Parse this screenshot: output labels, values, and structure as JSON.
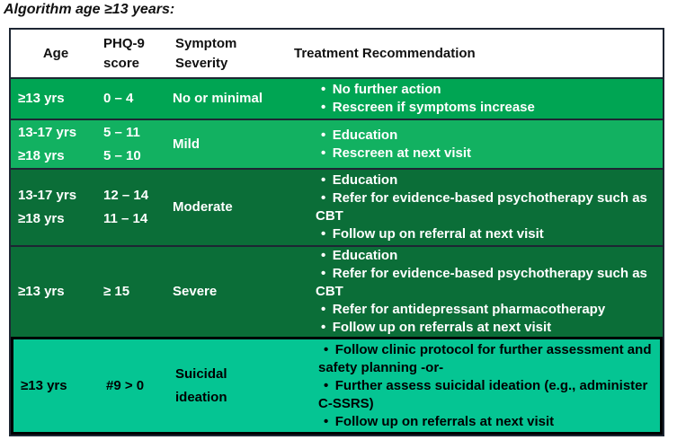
{
  "title": "Algorithm age ≥13 years:",
  "bullet_glyph": "•",
  "headers": {
    "age": "Age",
    "score": [
      "PHQ-9",
      "score"
    ],
    "severity": [
      "Symptom",
      "Severity"
    ],
    "treatment": "Treatment Recommendation"
  },
  "rows": [
    {
      "age_lines": [
        "≥13 yrs"
      ],
      "score_lines": [
        "0 – 4"
      ],
      "severity_lines": [
        "No or minimal"
      ],
      "bullets": [
        "No further action",
        "Rescreen if symptoms increase"
      ]
    },
    {
      "age_lines": [
        "13-17 yrs",
        "≥18 yrs"
      ],
      "score_lines": [
        "5 – 11",
        "5 – 10"
      ],
      "severity_lines": [
        "Mild"
      ],
      "bullets": [
        "Education",
        "Rescreen at next visit"
      ]
    },
    {
      "age_lines": [
        "13-17 yrs",
        "≥18 yrs"
      ],
      "score_lines": [
        "12 – 14",
        "11 – 14"
      ],
      "severity_lines": [
        "Moderate"
      ],
      "bullets": [
        "Education",
        "Refer for evidence-based psychotherapy such as CBT",
        "Follow up on referral at next visit"
      ]
    },
    {
      "age_lines": [
        "≥13 yrs"
      ],
      "score_lines": [
        "≥ 15"
      ],
      "severity_lines": [
        "Severe"
      ],
      "bullets": [
        "Education",
        "Refer for evidence-based psychotherapy such as CBT",
        "Refer for antidepressant pharmacotherapy",
        "Follow up on referrals at next visit"
      ]
    },
    {
      "age_lines": [
        "≥13 yrs"
      ],
      "score_lines": [
        "#9 > 0"
      ],
      "severity_lines": [
        "Suicidal",
        "ideation"
      ],
      "bullets": [
        "Follow clinic protocol for further assessment and safety planning -or-",
        "Further assess suicidal ideation (e.g., administer C-SSRS)",
        "Follow up on referrals at next visit"
      ]
    }
  ],
  "colors": {
    "row_backgrounds": [
      "#00A553",
      "#12B161",
      "#0B6E38",
      "#0B6E38",
      "#05C593"
    ],
    "row_text": [
      "#FFFFFF",
      "#FFFFFF",
      "#FFFFFF",
      "#FFFFFF",
      "#000000"
    ],
    "header_text": "#111111",
    "border_dark": "#1d2633",
    "suicidal_border": "#000000"
  }
}
